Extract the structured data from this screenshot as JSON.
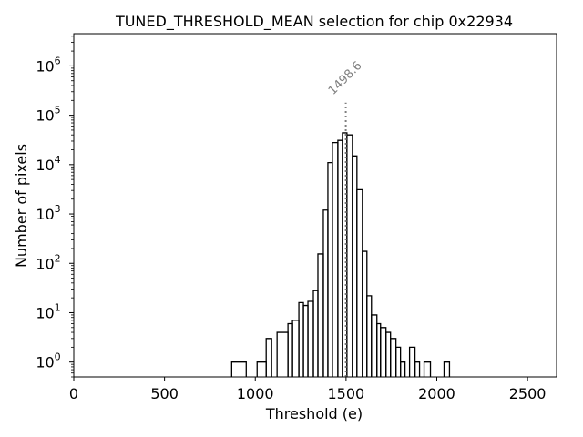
{
  "chart_data": {
    "type": "histogram",
    "title": "TUNED_THRESHOLD_MEAN selection for chip 0x22934",
    "xlabel": "Threshold (e)",
    "ylabel": "Number of pixels",
    "xlim": [
      0,
      2660
    ],
    "ylim": [
      0.5,
      4500000
    ],
    "yscale": "log",
    "xticks": [
      0,
      500,
      1000,
      1500,
      2000,
      2500
    ],
    "xtick_labels": [
      "0",
      "500",
      "1000",
      "1500",
      "2000",
      "2500"
    ],
    "yticks": [
      1,
      10,
      100,
      1000,
      10000,
      100000,
      1000000
    ],
    "ytick_labels": [
      {
        "base": "10",
        "exp": "0"
      },
      {
        "base": "10",
        "exp": "1"
      },
      {
        "base": "10",
        "exp": "2"
      },
      {
        "base": "10",
        "exp": "3"
      },
      {
        "base": "10",
        "exp": "4"
      },
      {
        "base": "10",
        "exp": "5"
      },
      {
        "base": "10",
        "exp": "6"
      }
    ],
    "bin_width": 26.5,
    "bins": [
      {
        "x0": 870,
        "x1": 950,
        "count": 1
      },
      {
        "x0": 950,
        "x1": 1010,
        "count": 0
      },
      {
        "x0": 1010,
        "x1": 1060,
        "count": 1
      },
      {
        "x0": 1060,
        "x1": 1090,
        "count": 3
      },
      {
        "x0": 1090,
        "x1": 1120,
        "count": 0
      },
      {
        "x0": 1120,
        "x1": 1180,
        "count": 4
      },
      {
        "x0": 1180,
        "x1": 1205,
        "count": 6
      },
      {
        "x0": 1205,
        "x1": 1240,
        "count": 7
      },
      {
        "x0": 1240,
        "x1": 1265,
        "count": 16
      },
      {
        "x0": 1265,
        "x1": 1290,
        "count": 14
      },
      {
        "x0": 1290,
        "x1": 1320,
        "count": 17
      },
      {
        "x0": 1320,
        "x1": 1345,
        "count": 28
      },
      {
        "x0": 1345,
        "x1": 1375,
        "count": 155
      },
      {
        "x0": 1375,
        "x1": 1400,
        "count": 1200
      },
      {
        "x0": 1400,
        "x1": 1425,
        "count": 11000
      },
      {
        "x0": 1425,
        "x1": 1455,
        "count": 28000
      },
      {
        "x0": 1455,
        "x1": 1480,
        "count": 31000
      },
      {
        "x0": 1480,
        "x1": 1505,
        "count": 44000
      },
      {
        "x0": 1505,
        "x1": 1535,
        "count": 40000
      },
      {
        "x0": 1535,
        "x1": 1560,
        "count": 15000
      },
      {
        "x0": 1560,
        "x1": 1590,
        "count": 3100
      },
      {
        "x0": 1590,
        "x1": 1615,
        "count": 175
      },
      {
        "x0": 1615,
        "x1": 1640,
        "count": 22
      },
      {
        "x0": 1640,
        "x1": 1670,
        "count": 9
      },
      {
        "x0": 1670,
        "x1": 1690,
        "count": 6
      },
      {
        "x0": 1690,
        "x1": 1720,
        "count": 5
      },
      {
        "x0": 1720,
        "x1": 1745,
        "count": 4
      },
      {
        "x0": 1745,
        "x1": 1775,
        "count": 3
      },
      {
        "x0": 1775,
        "x1": 1800,
        "count": 2
      },
      {
        "x0": 1800,
        "x1": 1825,
        "count": 1
      },
      {
        "x0": 1825,
        "x1": 1850,
        "count": 0
      },
      {
        "x0": 1850,
        "x1": 1880,
        "count": 2
      },
      {
        "x0": 1880,
        "x1": 1905,
        "count": 1
      },
      {
        "x0": 1905,
        "x1": 1930,
        "count": 0
      },
      {
        "x0": 1930,
        "x1": 1965,
        "count": 1
      },
      {
        "x0": 1965,
        "x1": 2040,
        "count": 0
      },
      {
        "x0": 2040,
        "x1": 2070,
        "count": 1
      }
    ],
    "marker": {
      "x": 1498.6,
      "label": "1498.6",
      "y_top": 180000
    },
    "grid": false,
    "colors": {
      "hist": "#000000",
      "marker": "#808080"
    }
  }
}
